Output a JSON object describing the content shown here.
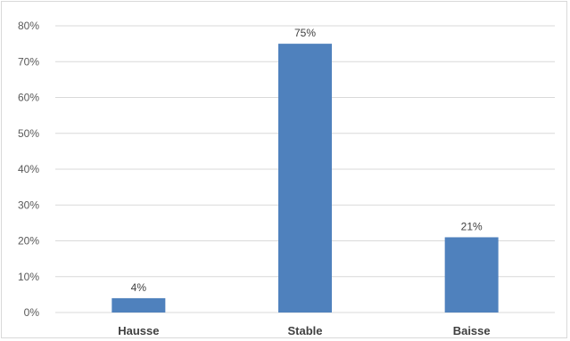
{
  "chart_data": {
    "type": "bar",
    "categories": [
      "Hausse",
      "Stable",
      "Baisse"
    ],
    "values": [
      4,
      75,
      21
    ],
    "data_labels": [
      "4%",
      "75%",
      "21%"
    ],
    "y_ticks": [
      0,
      10,
      20,
      30,
      40,
      50,
      60,
      70,
      80
    ],
    "y_tick_labels": [
      "0%",
      "10%",
      "20%",
      "30%",
      "40%",
      "50%",
      "60%",
      "70%",
      "80%"
    ],
    "ylim": [
      0,
      80
    ],
    "title": "",
    "xlabel": "",
    "ylabel": "",
    "grid": true,
    "legend": "none",
    "bar_color": "#4f81bd",
    "grid_color": "#d9d9d9"
  }
}
